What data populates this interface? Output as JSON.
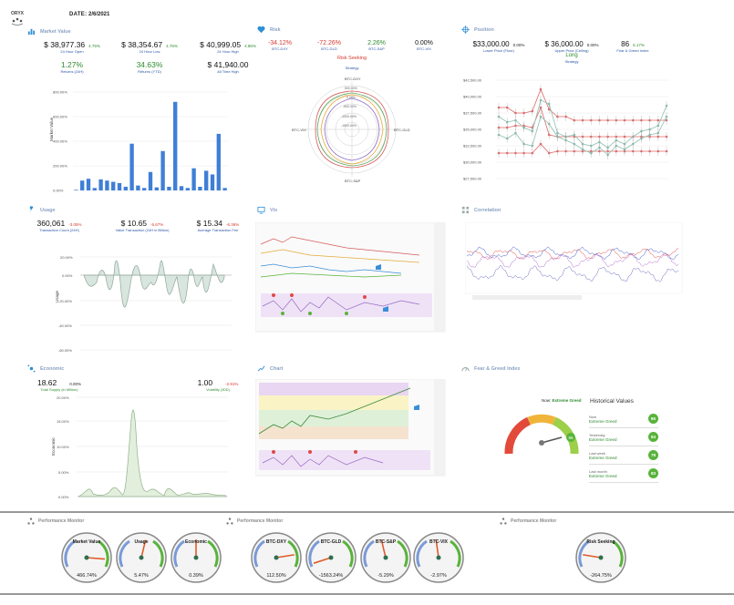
{
  "header": {
    "logo": "ORYX",
    "date_label": "DATE:",
    "date_value": "2/6/2021"
  },
  "market_value": {
    "title": "Market Value",
    "stats": [
      {
        "value": "$ 38,977.36",
        "pct": "4.75%",
        "label": "24 Hour Open"
      },
      {
        "value": "$ 38,354.67",
        "pct": "4.75%",
        "label": "24 Hour Low"
      },
      {
        "value": "$ 40,999.05",
        "pct": "4.86%",
        "label": "24 Hour High"
      },
      {
        "value": "1.27%",
        "pct": "",
        "label": "Returns (24H)"
      },
      {
        "value": "34.63%",
        "pct": "",
        "label": "Returns (YTD)"
      },
      {
        "value": "$ 41,940.00",
        "pct": "",
        "label": "All Time High"
      }
    ],
    "chart": {
      "ylabel": "Market Value",
      "yticks": [
        "800.00%",
        "600.00%",
        "400.00%",
        "200.00%",
        "0.00%"
      ],
      "values": [
        5,
        80,
        95,
        20,
        90,
        80,
        70,
        60,
        30,
        380,
        40,
        20,
        150,
        25,
        320,
        30,
        720,
        35,
        20,
        180,
        30,
        160,
        130,
        460,
        20
      ]
    }
  },
  "risk": {
    "title": "Risk",
    "stats": [
      {
        "value": "-34.12%",
        "label": "BTC-DXY",
        "cls": "red"
      },
      {
        "value": "-72.26%",
        "label": "BTC-GLD",
        "cls": "red"
      },
      {
        "value": "2.26%",
        "label": "BTC-S&P",
        "cls": "green"
      },
      {
        "value": "0.00%",
        "label": "BTC-VIX",
        "cls": ""
      }
    ],
    "status": "Risk Seeking",
    "status_label": "Strategy",
    "radar": {
      "axes": [
        "BTC-DXY",
        "BTC-GLD",
        "BTC-S&P",
        "BTC-VIX"
      ],
      "rings": [
        "500.00%",
        "0.00%",
        "-500.00%",
        "-1000.00%",
        "-1500.00%"
      ]
    }
  },
  "position": {
    "title": "Position",
    "stats": [
      {
        "value": "$33,000.00",
        "pct": "0.00%",
        "label": "Lower Price (Floor)"
      },
      {
        "value": "$ 36,000.00",
        "pct": "0.00%",
        "label": "Upper Price (Ceiling)"
      },
      {
        "value": "86",
        "pct": "6.17%",
        "label": "Fear & Greed Index"
      }
    ],
    "status": "Long",
    "status_label": "Strategy",
    "yticks": [
      "$42,500.00",
      "$40,000.00",
      "$37,500.00",
      "$35,000.00",
      "$32,500.00",
      "$30,000.00",
      "$27,500.00"
    ]
  },
  "usage": {
    "title": "Usage",
    "stats": [
      {
        "value": "360,061",
        "pct": "-3.05%",
        "label": "Transaction Count (24H)"
      },
      {
        "value": "$ 10.65",
        "pct": "-5.67%",
        "label": "Value Transaction (24H in Billion)"
      },
      {
        "value": "$ 15.34",
        "pct": "-6.36%",
        "label": "Average Transaction Fee"
      }
    ],
    "ylabel": "Usage",
    "yticks": [
      "20.00%",
      "0.00%",
      "-20.00%",
      "-40.00%",
      "-60.00%"
    ]
  },
  "vix": {
    "title": "Vix"
  },
  "correlation": {
    "title": "Correlation"
  },
  "economic": {
    "title": "Economic",
    "stats": [
      {
        "value": "18.62",
        "pct": "0.00%",
        "label": "Total Supply (in Million)"
      },
      {
        "value": "1.00",
        "pct": "-2.91%",
        "label": "Volatility (30D)"
      }
    ],
    "ylabel": "Economic",
    "yticks": [
      "20.00%",
      "15.00%",
      "10.00%",
      "5.00%",
      "0.00%"
    ]
  },
  "chart_panel": {
    "title": "Chart"
  },
  "fear_greed": {
    "title": "Fear & Greed Index",
    "now_label": "Now:",
    "now_value": "Extreme Greed",
    "gauge_value": "86",
    "history_title": "Historical Values",
    "history": [
      {
        "label": "Now",
        "value": "Extreme Greed",
        "num": "86"
      },
      {
        "label": "Yesterday",
        "value": "Extreme Greed",
        "num": "84"
      },
      {
        "label": "Last week",
        "value": "Extreme Greed",
        "num": "78"
      },
      {
        "label": "Last month",
        "value": "Extreme Greed",
        "num": "83"
      }
    ]
  },
  "performance": {
    "title": "Performance Monitor",
    "groups": [
      {
        "gauges": [
          {
            "name": "Market Value",
            "value": "466.74%",
            "level": 0.85
          },
          {
            "name": "Usage",
            "value": "5.47%",
            "level": 0.55
          },
          {
            "name": "Economic",
            "value": "0.39%",
            "level": 0.5
          }
        ]
      },
      {
        "gauges": [
          {
            "name": "BTC-DXY",
            "value": "112.50%",
            "level": 0.8
          },
          {
            "name": "BTC-GLD",
            "value": "-1563.24%",
            "level": 0.1
          },
          {
            "name": "BTC-S&P",
            "value": "-5.29%",
            "level": 0.45
          },
          {
            "name": "BTC-VIX",
            "value": "-2.97%",
            "level": 0.47
          }
        ]
      },
      {
        "gauges": [
          {
            "name": "Risk Seeking",
            "value": "-264.75%",
            "level": 0.2
          }
        ]
      }
    ]
  }
}
